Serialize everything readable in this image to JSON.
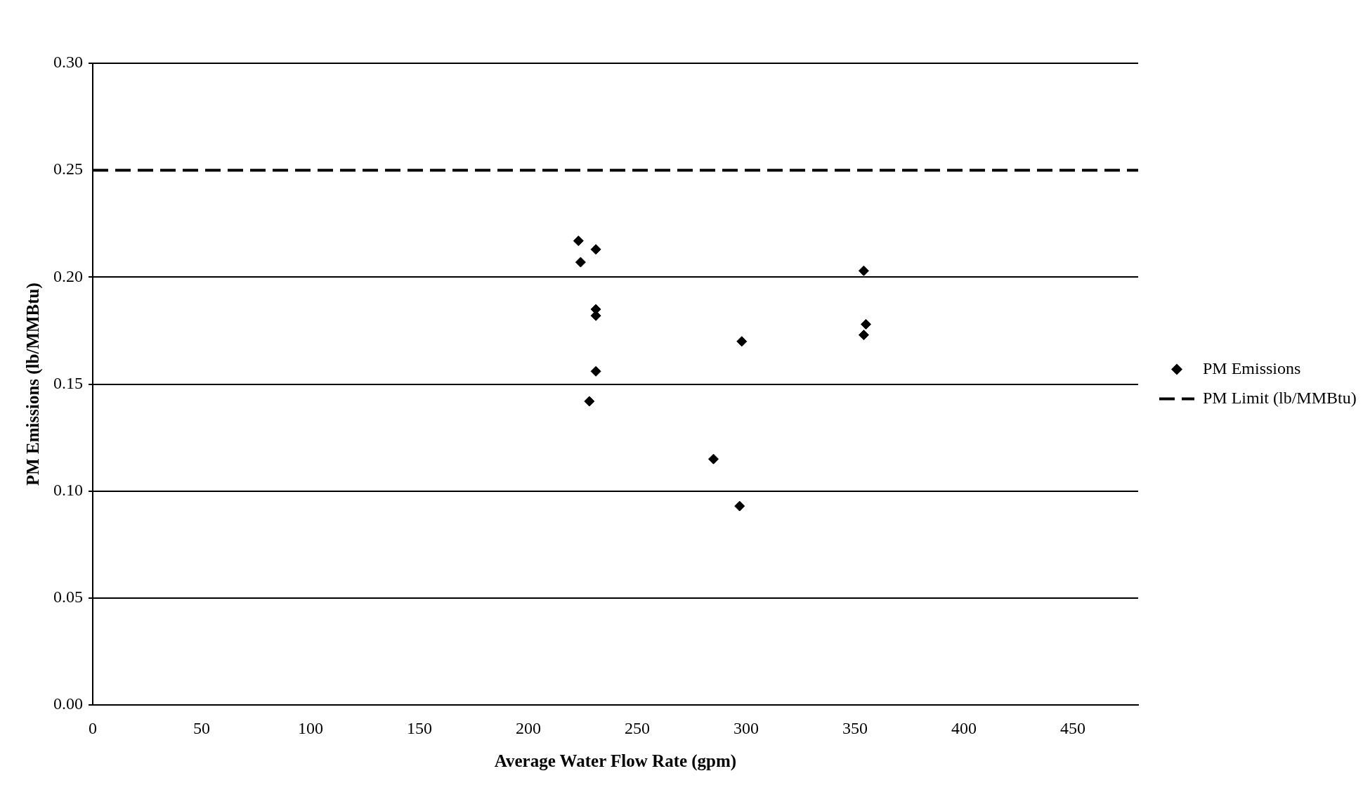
{
  "chart_data": {
    "type": "scatter",
    "xlabel": "Average Water Flow Rate (gpm)",
    "ylabel": "PM Emissions (lb/MMBtu)",
    "xlim": [
      0,
      480
    ],
    "xticks": [
      0,
      50,
      100,
      150,
      200,
      250,
      300,
      350,
      400,
      450
    ],
    "ylim": [
      0,
      0.3
    ],
    "yticks": [
      {
        "value": 0,
        "label": "0.00"
      },
      {
        "value": 0.05,
        "label": "0.05"
      },
      {
        "value": 0.1,
        "label": "0.10"
      },
      {
        "value": 0.15,
        "label": "0.15"
      },
      {
        "value": 0.2,
        "label": "0.20"
      },
      {
        "value": 0.25,
        "label": "0.25"
      },
      {
        "value": 0.3,
        "label": "0.30"
      }
    ],
    "grid": "y",
    "legend": "right",
    "marker": "diamond",
    "series": [
      {
        "name": "PM Emissions",
        "type": "scatter",
        "color": "#000000",
        "x": [
          223,
          224,
          231,
          231,
          231,
          231,
          228,
          285,
          297,
          298,
          354,
          355,
          354
        ],
        "values": [
          0.217,
          0.207,
          0.213,
          0.185,
          0.182,
          0.156,
          0.142,
          0.115,
          0.093,
          0.17,
          0.203,
          0.178,
          0.173
        ]
      },
      {
        "name": "PM Limit (lb/MMBtu)",
        "type": "line",
        "color": "#000000",
        "line_style": "dashed",
        "marker": "none",
        "x": [
          0,
          480
        ],
        "values": [
          0.25,
          0.25
        ]
      }
    ]
  }
}
